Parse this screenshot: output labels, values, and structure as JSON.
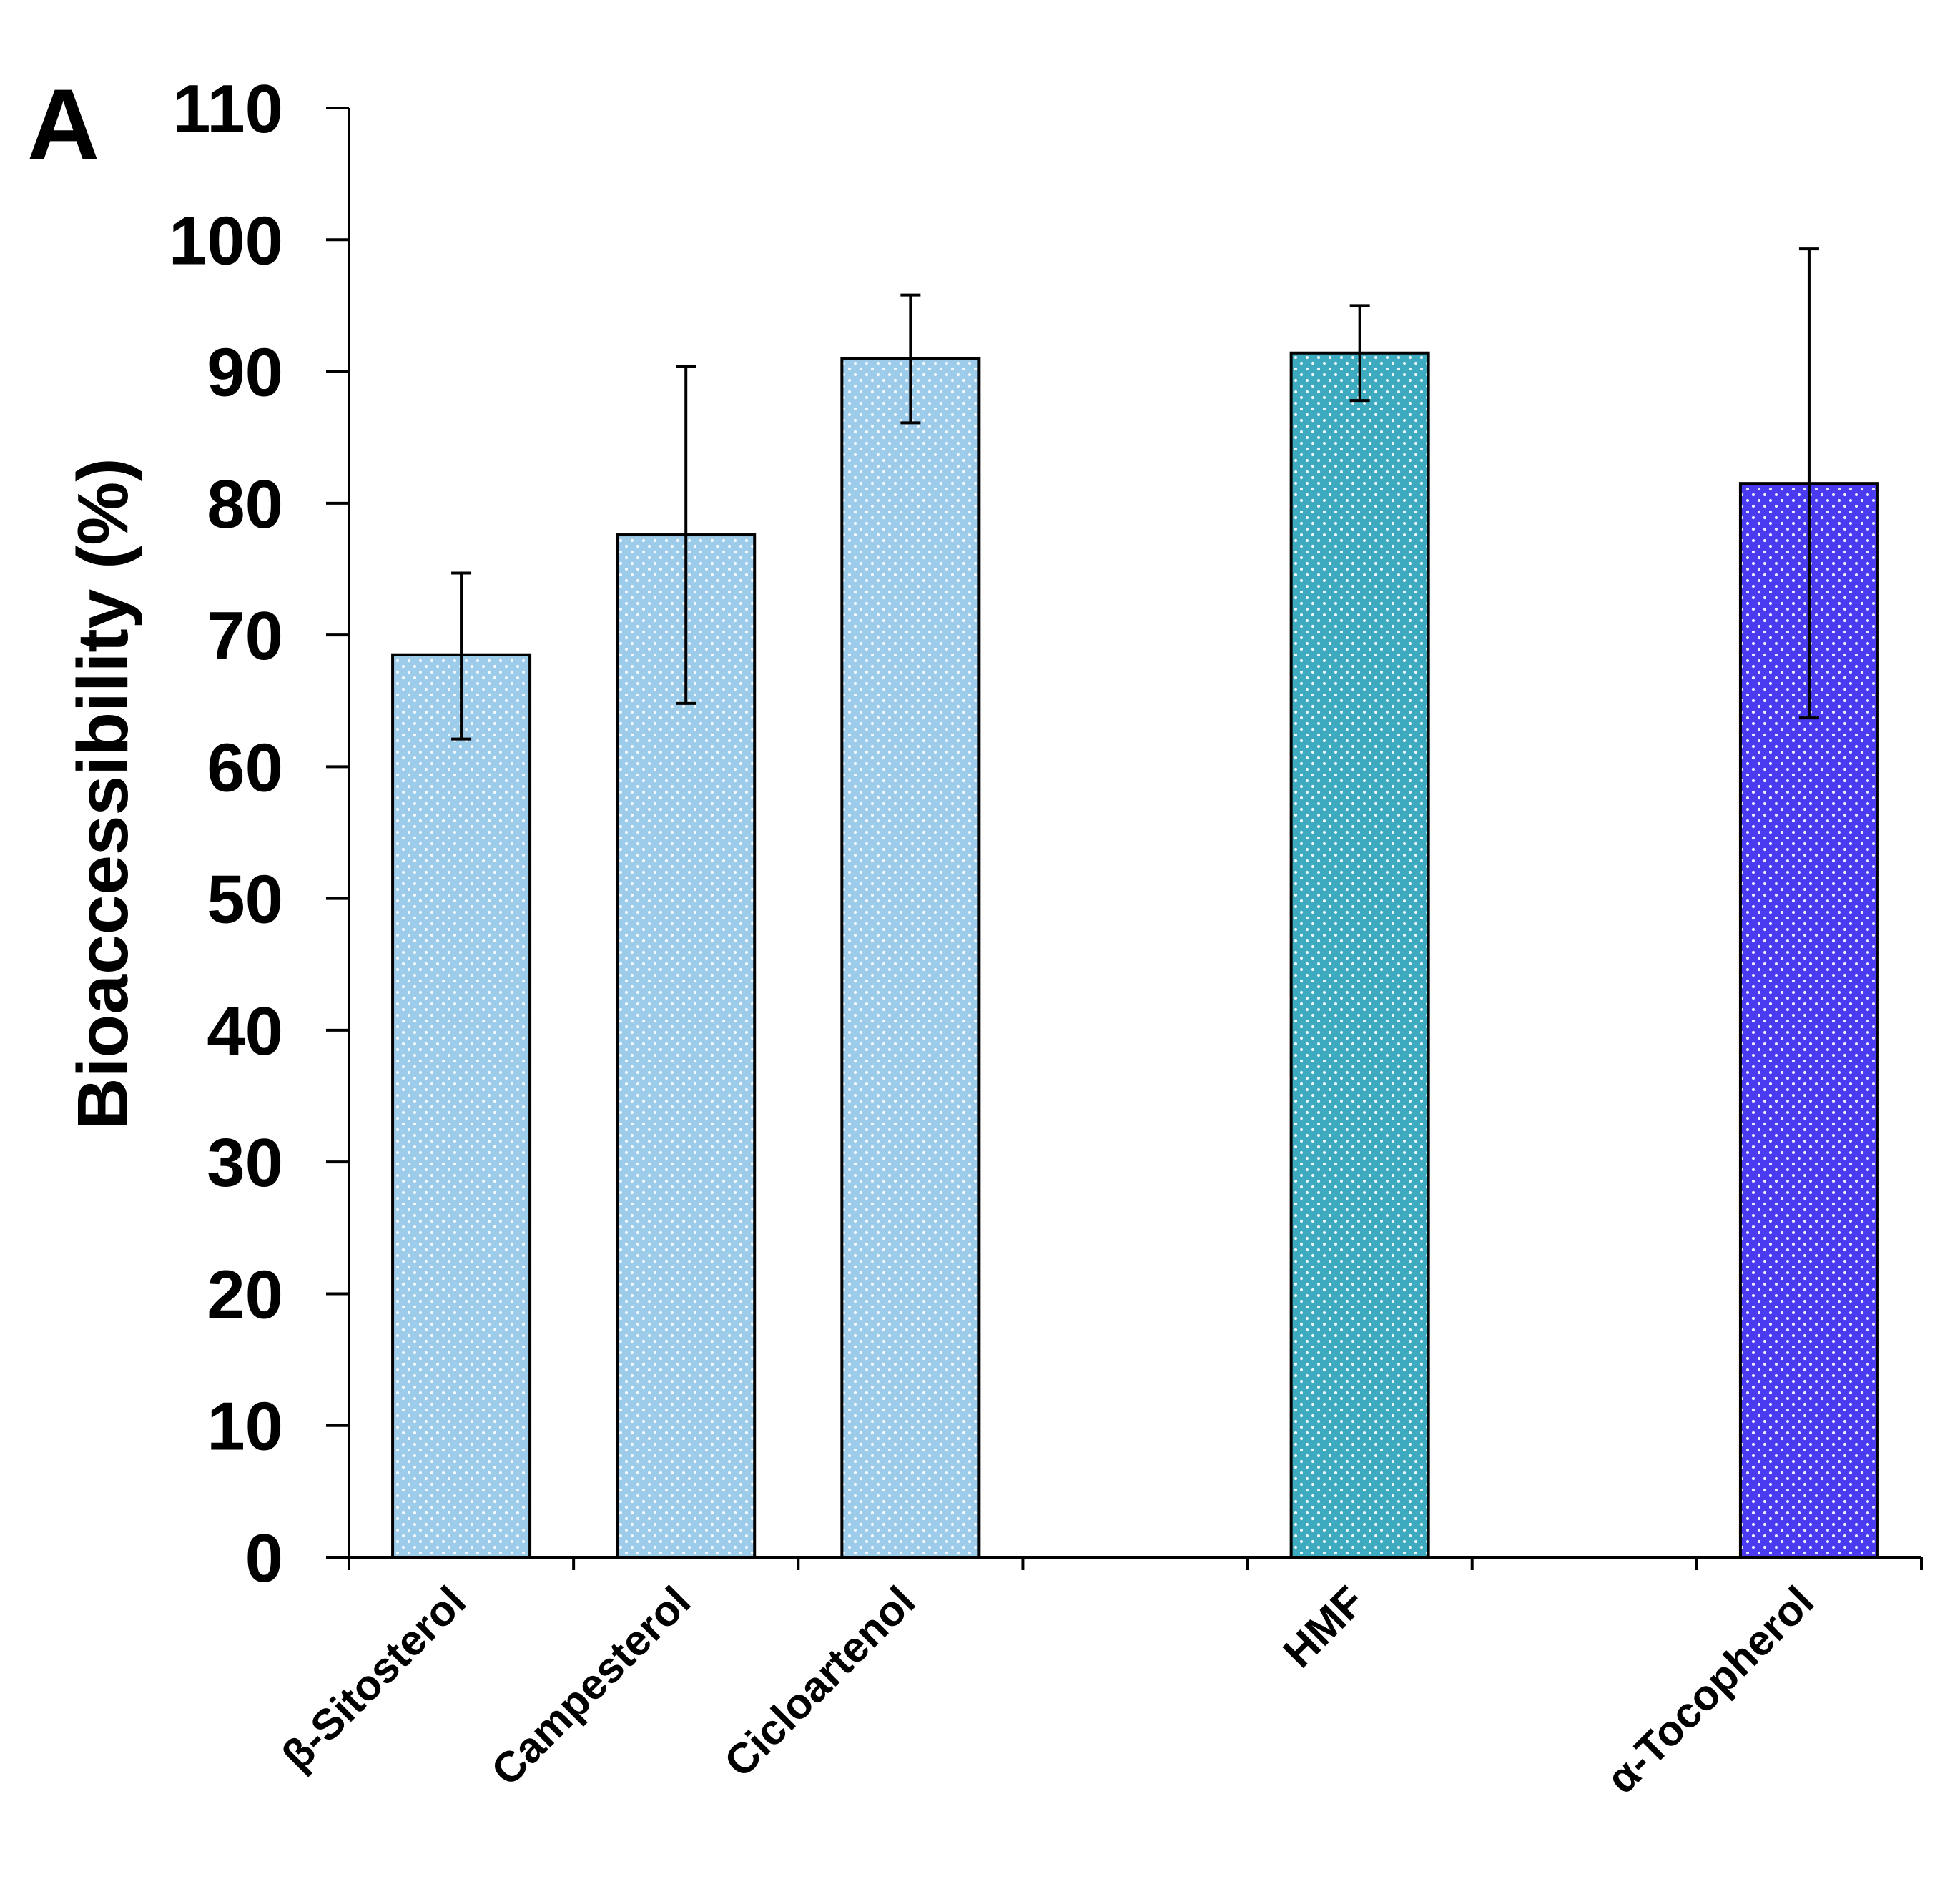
{
  "panel_label": "A",
  "chart_data": {
    "type": "bar",
    "title": "",
    "xlabel": "",
    "ylabel": "Bioaccessibility (%)",
    "ylim": [
      0,
      110
    ],
    "ytick_step": 10,
    "yticks": [
      "0",
      "10",
      "20",
      "30",
      "40",
      "50",
      "60",
      "70",
      "80",
      "90",
      "100",
      "110"
    ],
    "slots": 7,
    "grid": false,
    "bars": [
      {
        "label": "β-Sitosterol",
        "slot": 0,
        "value": 68.5,
        "error_low": 62.1,
        "error_high": 74.7,
        "color": "#9DCBEA",
        "dot_color": "#ffffff"
      },
      {
        "label": "Campesterol",
        "slot": 1,
        "value": 77.6,
        "error_low": 64.8,
        "error_high": 90.4,
        "color": "#9DCBEA",
        "dot_color": "#ffffff"
      },
      {
        "label": "Cicloartenol",
        "slot": 2,
        "value": 91.0,
        "error_low": 86.1,
        "error_high": 95.8,
        "color": "#9DCBEA",
        "dot_color": "#ffffff"
      },
      {
        "label": "HMF",
        "slot": 4,
        "value": 91.4,
        "error_low": 87.8,
        "error_high": 95.0,
        "color": "#3DAAC0",
        "dot_color": "#ffffff"
      },
      {
        "label": "α-Tocopherol",
        "slot": 6,
        "value": 81.5,
        "error_low": 63.7,
        "error_high": 99.3,
        "color": "#4A3AF0",
        "dot_color": "#ffffff"
      }
    ]
  }
}
